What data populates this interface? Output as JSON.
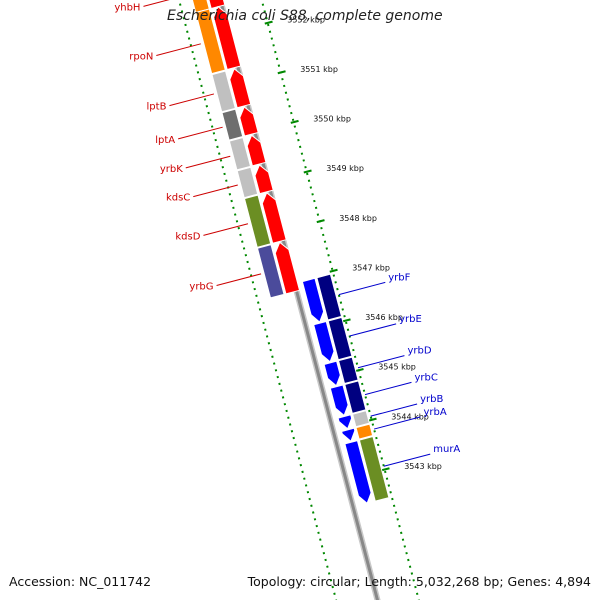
{
  "title": "Escherichia coli S88, complete genome",
  "footer": {
    "accession": "Accession: NC_011742",
    "summary": "Topology: circular; Length: 5,032,268 bp; Genes: 4,894"
  },
  "colors": {
    "forward_label": "#cc0000",
    "reverse_label": "#0000cc",
    "tick": "#008800",
    "backbone": "#888888"
  },
  "ticks": [
    {
      "label": "3552 kbp",
      "pos": 3552
    },
    {
      "label": "3551 kbp",
      "pos": 3551
    },
    {
      "label": "3550 kbp",
      "pos": 3550
    },
    {
      "label": "3549 kbp",
      "pos": 3549
    },
    {
      "label": "3548 kbp",
      "pos": 3548
    },
    {
      "label": "3547 kbp",
      "pos": 3547
    },
    {
      "label": "3546 kbp",
      "pos": 3546
    },
    {
      "label": "3545 kbp",
      "pos": 3545
    },
    {
      "label": "3544 kbp",
      "pos": 3544
    },
    {
      "label": "3543 kbp",
      "pos": 3543
    }
  ],
  "forward_genes": [
    {
      "name": "yhbH",
      "start": 3552.55,
      "end": 3553.3,
      "cog": "#ff8800"
    },
    {
      "name": "rpoN",
      "start": 3551.32,
      "end": 3552.55,
      "cog": "#ff8800"
    },
    {
      "name": "lptB",
      "start": 3550.55,
      "end": 3551.3,
      "cog": "#c0c0c0"
    },
    {
      "name": "lptA",
      "start": 3549.98,
      "end": 3550.53,
      "cog": "#6e6e6e"
    },
    {
      "name": "yrbK",
      "start": 3549.38,
      "end": 3549.96,
      "cog": "#c0c0c0"
    },
    {
      "name": "kdsC",
      "start": 3548.82,
      "end": 3549.36,
      "cog": "#c0c0c0"
    },
    {
      "name": "kdsD",
      "start": 3547.82,
      "end": 3548.8,
      "cog": "#6b8e23"
    },
    {
      "name": "yrbG",
      "start": 3546.8,
      "end": 3547.8,
      "cog": "#4b4b9b"
    }
  ],
  "reverse_genes": [
    {
      "name": "yrbF",
      "start": 3546.1,
      "end": 3546.95,
      "cog": "#000080"
    },
    {
      "name": "yrbE",
      "start": 3545.3,
      "end": 3546.08,
      "cog": "#000080"
    },
    {
      "name": "yrbD",
      "start": 3544.82,
      "end": 3545.28,
      "cog": "#000080"
    },
    {
      "name": "yrbC",
      "start": 3544.22,
      "end": 3544.8,
      "cog": "#000080"
    },
    {
      "name": "yrbB",
      "start": 3543.95,
      "end": 3544.2,
      "cog": "#c0c0c0"
    },
    {
      "name": "yrbA",
      "start": 3543.7,
      "end": 3543.93,
      "cog": "#ff8800"
    },
    {
      "name": "murA",
      "start": 3542.45,
      "end": 3543.68,
      "cog": "#6b8e23"
    }
  ]
}
